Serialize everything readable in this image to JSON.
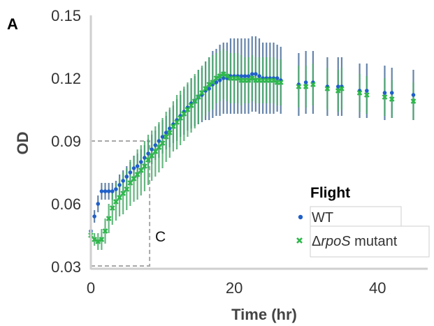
{
  "panel_label": "A",
  "annotation": "C",
  "chart_data": {
    "type": "scatter",
    "title": "",
    "xlabel": "Time (hr)",
    "ylabel": "OD",
    "xlim": [
      0,
      47
    ],
    "ylim": [
      0.03,
      0.15
    ],
    "x_ticks": [
      "0",
      "20",
      "40"
    ],
    "y_ticks": [
      "0.03",
      "0.06",
      "0.09",
      "0.12",
      "0.15"
    ],
    "grid": false,
    "legend": {
      "title": "Flight",
      "placement": "bottom-right",
      "entries": [
        "WT",
        "ΔrpoS mutant"
      ]
    },
    "reference_box": {
      "x_max": 8.2,
      "y_max": 0.09
    },
    "series": [
      {
        "name": "WT",
        "color": "#1f5fc8",
        "error_color": "#4a6f9a",
        "x": [
          0,
          0.5,
          1,
          1.5,
          2,
          2.5,
          3,
          3.5,
          4,
          4.5,
          5,
          5.5,
          6,
          6.5,
          7,
          7.5,
          8,
          8.5,
          9,
          9.5,
          10,
          10.5,
          11,
          11.5,
          12,
          12.5,
          13,
          13.5,
          14,
          14.5,
          15,
          15.5,
          16,
          16.5,
          17,
          17.5,
          18,
          18.5,
          19,
          19.5,
          20,
          20.5,
          21,
          21.5,
          22,
          22.5,
          23,
          23.5,
          24,
          24.5,
          25,
          25.5,
          26,
          26.5,
          29,
          30,
          31,
          33,
          34.5,
          35,
          37.5,
          38.5,
          41,
          42,
          45
        ],
        "y": [
          0.047,
          0.054,
          0.06,
          0.066,
          0.066,
          0.066,
          0.066,
          0.067,
          0.069,
          0.071,
          0.073,
          0.075,
          0.077,
          0.078,
          0.08,
          0.082,
          0.084,
          0.086,
          0.088,
          0.09,
          0.092,
          0.094,
          0.096,
          0.098,
          0.1,
          0.102,
          0.104,
          0.106,
          0.108,
          0.109,
          0.111,
          0.112,
          0.114,
          0.115,
          0.117,
          0.118,
          0.119,
          0.12,
          0.12,
          0.121,
          0.121,
          0.121,
          0.121,
          0.121,
          0.121,
          0.122,
          0.122,
          0.121,
          0.12,
          0.12,
          0.12,
          0.12,
          0.12,
          0.119,
          0.117,
          0.118,
          0.118,
          0.116,
          0.116,
          0.116,
          0.114,
          0.114,
          0.113,
          0.113,
          0.112
        ],
        "err": [
          0.003,
          0.003,
          0.004,
          0.004,
          0.004,
          0.004,
          0.004,
          0.004,
          0.005,
          0.005,
          0.005,
          0.005,
          0.006,
          0.006,
          0.006,
          0.006,
          0.007,
          0.007,
          0.007,
          0.008,
          0.008,
          0.008,
          0.009,
          0.009,
          0.01,
          0.01,
          0.011,
          0.011,
          0.012,
          0.012,
          0.013,
          0.013,
          0.014,
          0.015,
          0.016,
          0.016,
          0.017,
          0.017,
          0.017,
          0.018,
          0.018,
          0.018,
          0.018,
          0.018,
          0.018,
          0.018,
          0.018,
          0.018,
          0.017,
          0.017,
          0.017,
          0.017,
          0.016,
          0.016,
          0.015,
          0.015,
          0.015,
          0.014,
          0.014,
          0.014,
          0.013,
          0.013,
          0.013,
          0.012,
          0.012
        ]
      },
      {
        "name": "ΔrpoS mutant",
        "color": "#2db84a",
        "error_color": "#4aa96a",
        "x": [
          0,
          0.5,
          1,
          1.5,
          2,
          2.5,
          3,
          3.5,
          4,
          4.5,
          5,
          5.5,
          6,
          6.5,
          7,
          7.5,
          8,
          8.5,
          9,
          9.5,
          10,
          10.5,
          11,
          11.5,
          12,
          12.5,
          13,
          13.5,
          14,
          14.5,
          15,
          15.5,
          16,
          16.5,
          17,
          17.5,
          18,
          18.5,
          19,
          19.5,
          20,
          20.5,
          21,
          21.5,
          22,
          22.5,
          23,
          23.5,
          24,
          24.5,
          25,
          25.5,
          26,
          26.5,
          29,
          30,
          31,
          33,
          34.5,
          35,
          37.5,
          38.5,
          41,
          42,
          45
        ],
        "y": [
          0.045,
          0.043,
          0.042,
          0.043,
          0.047,
          0.053,
          0.058,
          0.061,
          0.063,
          0.065,
          0.067,
          0.07,
          0.072,
          0.074,
          0.076,
          0.078,
          0.081,
          0.083,
          0.085,
          0.087,
          0.089,
          0.092,
          0.094,
          0.097,
          0.099,
          0.101,
          0.103,
          0.105,
          0.107,
          0.109,
          0.111,
          0.113,
          0.115,
          0.117,
          0.118,
          0.12,
          0.121,
          0.122,
          0.121,
          0.12,
          0.12,
          0.12,
          0.119,
          0.119,
          0.119,
          0.12,
          0.119,
          0.119,
          0.119,
          0.119,
          0.119,
          0.119,
          0.118,
          0.118,
          0.116,
          0.116,
          0.117,
          0.115,
          0.114,
          0.115,
          0.113,
          0.112,
          0.111,
          0.11,
          0.109
        ],
        "err": [
          0.003,
          0.003,
          0.004,
          0.005,
          0.006,
          0.007,
          0.008,
          0.009,
          0.009,
          0.01,
          0.01,
          0.011,
          0.011,
          0.012,
          0.012,
          0.012,
          0.012,
          0.012,
          0.012,
          0.012,
          0.012,
          0.012,
          0.012,
          0.012,
          0.013,
          0.013,
          0.013,
          0.013,
          0.013,
          0.013,
          0.013,
          0.013,
          0.013,
          0.013,
          0.013,
          0.012,
          0.012,
          0.012,
          0.012,
          0.012,
          0.012,
          0.012,
          0.012,
          0.011,
          0.011,
          0.011,
          0.011,
          0.011,
          0.011,
          0.011,
          0.011,
          0.011,
          0.011,
          0.011,
          0.01,
          0.01,
          0.01,
          0.01,
          0.01,
          0.01,
          0.009,
          0.009,
          0.009,
          0.009,
          0.009
        ]
      }
    ]
  }
}
